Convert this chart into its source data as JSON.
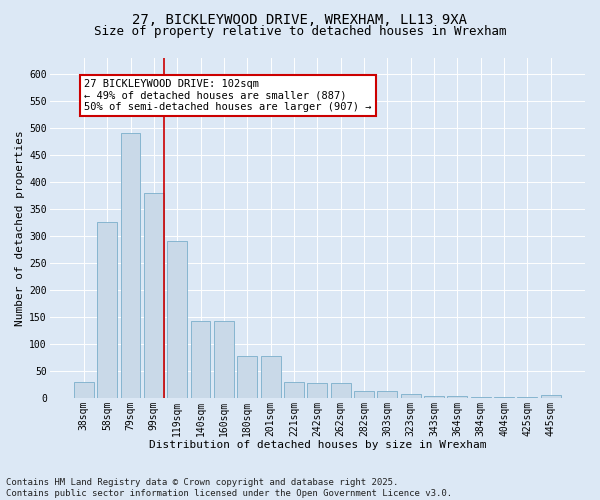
{
  "title_line1": "27, BICKLEYWOOD DRIVE, WREXHAM, LL13 9XA",
  "title_line2": "Size of property relative to detached houses in Wrexham",
  "xlabel": "Distribution of detached houses by size in Wrexham",
  "ylabel": "Number of detached properties",
  "categories": [
    "38sqm",
    "58sqm",
    "79sqm",
    "99sqm",
    "119sqm",
    "140sqm",
    "160sqm",
    "180sqm",
    "201sqm",
    "221sqm",
    "242sqm",
    "262sqm",
    "282sqm",
    "303sqm",
    "323sqm",
    "343sqm",
    "364sqm",
    "384sqm",
    "404sqm",
    "425sqm",
    "445sqm"
  ],
  "values": [
    30,
    325,
    490,
    380,
    290,
    143,
    143,
    77,
    77,
    30,
    27,
    27,
    13,
    13,
    7,
    4,
    4,
    2,
    2,
    2,
    5
  ],
  "bar_color": "#c9d9e8",
  "bar_edge_color": "#7aaecb",
  "vline_x_index": 3,
  "vline_color": "#cc0000",
  "annotation_text": "27 BICKLEYWOOD DRIVE: 102sqm\n← 49% of detached houses are smaller (887)\n50% of semi-detached houses are larger (907) →",
  "annotation_box_color": "#ffffff",
  "annotation_box_edge": "#cc0000",
  "ylim": [
    0,
    630
  ],
  "yticks": [
    0,
    50,
    100,
    150,
    200,
    250,
    300,
    350,
    400,
    450,
    500,
    550,
    600
  ],
  "bg_color": "#dce8f5",
  "plot_bg_color": "#dce8f5",
  "grid_color": "#ffffff",
  "footer": "Contains HM Land Registry data © Crown copyright and database right 2025.\nContains public sector information licensed under the Open Government Licence v3.0.",
  "title_fontsize": 10,
  "subtitle_fontsize": 9,
  "xlabel_fontsize": 8,
  "ylabel_fontsize": 8,
  "tick_fontsize": 7,
  "annot_fontsize": 7.5,
  "footer_fontsize": 6.5
}
